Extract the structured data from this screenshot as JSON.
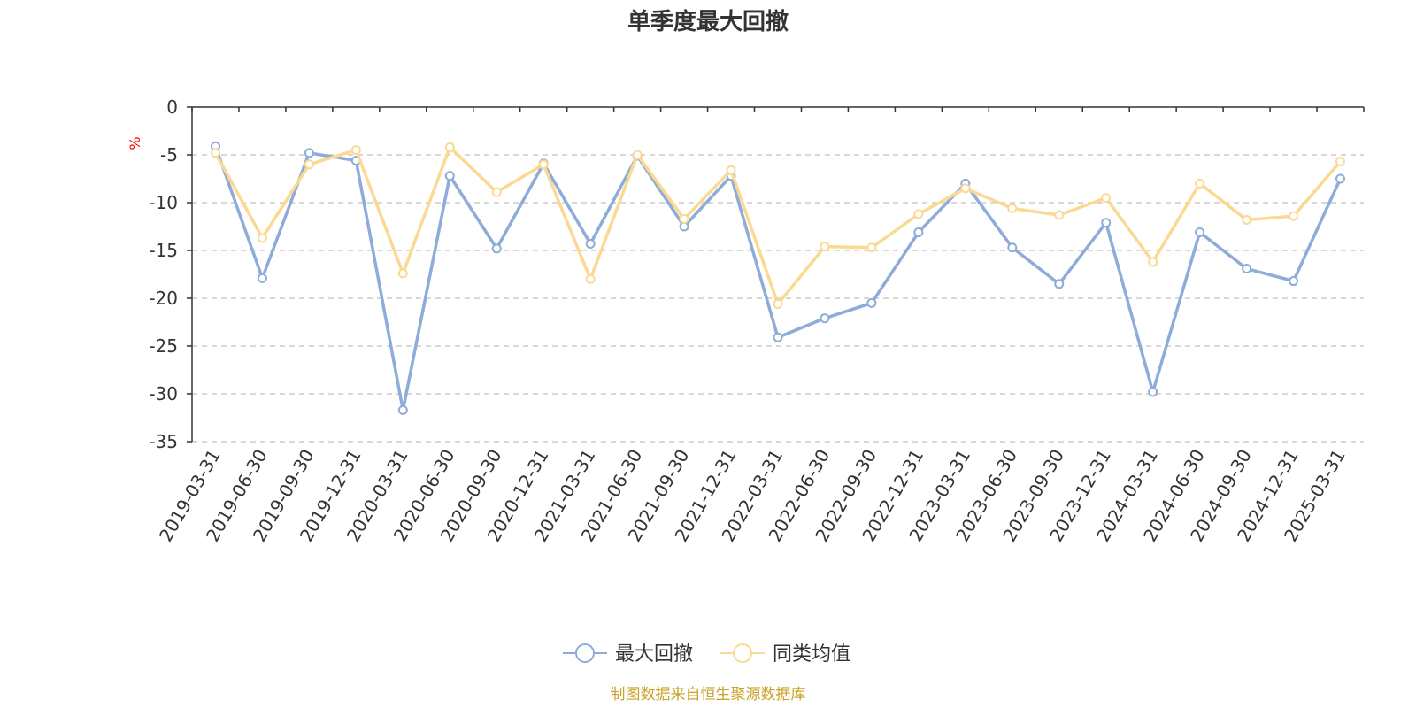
{
  "chart_data": {
    "type": "line",
    "title": "单季度最大回撤",
    "ylabel": "%",
    "ylim": [
      -35,
      0
    ],
    "yticks": [
      0,
      -5,
      -10,
      -15,
      -20,
      -25,
      -30,
      -35
    ],
    "grid": true,
    "legend_position": "bottom",
    "categories": [
      "2019-03-31",
      "2019-06-30",
      "2019-09-30",
      "2019-12-31",
      "2020-03-31",
      "2020-06-30",
      "2020-09-30",
      "2020-12-31",
      "2021-03-31",
      "2021-06-30",
      "2021-09-30",
      "2021-12-31",
      "2022-03-31",
      "2022-06-30",
      "2022-09-30",
      "2022-12-31",
      "2023-03-31",
      "2023-06-30",
      "2023-09-30",
      "2023-12-31",
      "2024-03-31",
      "2024-06-30",
      "2024-09-30",
      "2024-12-31",
      "2025-03-31"
    ],
    "series": [
      {
        "name": "最大回撤",
        "color": "#8eacd9",
        "values": [
          -4.1,
          -17.9,
          -4.8,
          -5.6,
          -31.7,
          -7.2,
          -14.8,
          -5.9,
          -14.3,
          -5.1,
          -12.5,
          -7.2,
          -24.1,
          -22.1,
          -20.5,
          -13.1,
          -8.0,
          -14.7,
          -18.5,
          -12.1,
          -29.8,
          -13.1,
          -16.9,
          -18.2,
          -7.5
        ]
      },
      {
        "name": "同类均值",
        "color": "#fbd992",
        "values": [
          -4.8,
          -13.7,
          -6.0,
          -4.5,
          -17.4,
          -4.2,
          -8.9,
          -6.0,
          -18.0,
          -5.0,
          -11.7,
          -6.6,
          -20.6,
          -14.6,
          -14.7,
          -11.2,
          -8.5,
          -10.6,
          -11.3,
          -9.5,
          -16.2,
          -8.0,
          -11.8,
          -11.4,
          -5.7
        ]
      }
    ]
  },
  "source_text": "制图数据来自恒生聚源数据库"
}
